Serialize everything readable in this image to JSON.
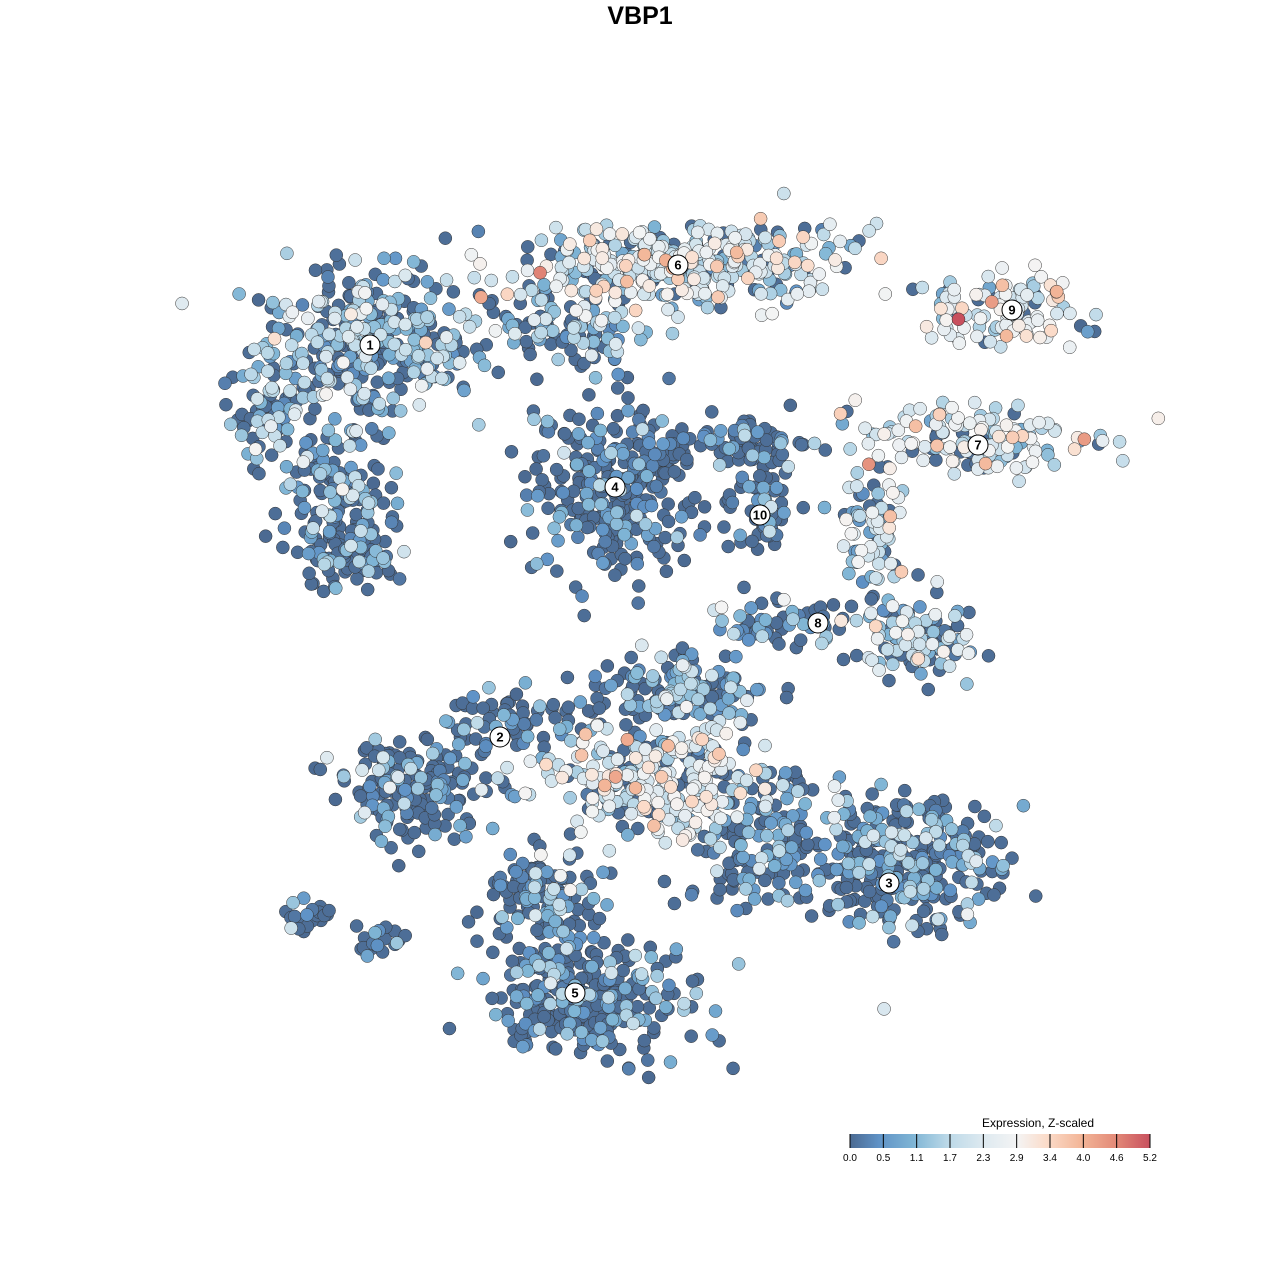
{
  "chart_data": {
    "type": "scatter",
    "title": "VBP1",
    "xlabel": "",
    "ylabel": "",
    "xlim": [
      -9,
      10
    ],
    "ylim": [
      -9.5,
      9.5
    ],
    "grid": false,
    "axes_visible": false,
    "legend": {
      "title": "Expression, Z-scaled",
      "placement": "bottom-right",
      "ticks": [
        "0.0",
        "0.5",
        "1.1",
        "1.7",
        "2.3",
        "2.9",
        "3.4",
        "4.0",
        "4.6",
        "5.2"
      ],
      "range": [
        0,
        5.2
      ],
      "colors": [
        "#4b6a92",
        "#5f92c6",
        "#7fb5d5",
        "#bcd9e8",
        "#dde9f0",
        "#f4f4f4",
        "#fbdcca",
        "#f3b698",
        "#e38a78",
        "#c8505e"
      ]
    },
    "point_stroke": "#333333",
    "clusters": [
      {
        "label": "1",
        "center": [
          -5.4,
          5.9
        ],
        "blobs": [
          {
            "c": [
              -5.4,
              5.9
            ],
            "s": [
              1.8,
              1.2
            ],
            "n": 350,
            "expr": 1.3
          },
          {
            "c": [
              -6.0,
              3.0
            ],
            "s": [
              1.0,
              1.3
            ],
            "n": 150,
            "expr": 0.9
          },
          {
            "c": [
              -7.5,
              4.5
            ],
            "s": [
              0.6,
              0.8
            ],
            "n": 60,
            "expr": 1.0
          },
          {
            "c": [
              -5.8,
              1.7
            ],
            "s": [
              0.8,
              0.5
            ],
            "n": 80,
            "expr": 0.6
          }
        ]
      },
      {
        "label": "6",
        "center": [
          0.76,
          7.5
        ],
        "blobs": [
          {
            "c": [
              0.8,
              7.5
            ],
            "s": [
              2.6,
              0.7
            ],
            "n": 400,
            "expr": 2.0
          },
          {
            "c": [
              -1.5,
              6.2
            ],
            "s": [
              1.5,
              0.6
            ],
            "n": 100,
            "expr": 1.4
          }
        ]
      },
      {
        "label": "4",
        "center": [
          -0.5,
          3.06
        ],
        "blobs": [
          {
            "c": [
              -0.5,
              3.0
            ],
            "s": [
              1.3,
              1.5
            ],
            "n": 300,
            "expr": 0.4
          }
        ]
      },
      {
        "label": "10",
        "center": [
          2.4,
          2.5
        ],
        "blobs": [
          {
            "c": [
              2.4,
              2.6
            ],
            "s": [
              0.6,
              1.0
            ],
            "n": 60,
            "expr": 0.5
          },
          {
            "c": [
              2.0,
              3.9
            ],
            "s": [
              1.2,
              0.4
            ],
            "n": 70,
            "expr": 0.4
          }
        ]
      },
      {
        "label": "9",
        "center": [
          7.44,
          6.6
        ],
        "blobs": [
          {
            "c": [
              7.2,
              6.6
            ],
            "s": [
              1.3,
              0.6
            ],
            "n": 120,
            "expr": 2.3
          }
        ]
      },
      {
        "label": "7",
        "center": [
          6.76,
          3.9
        ],
        "blobs": [
          {
            "c": [
              6.6,
              4.0
            ],
            "s": [
              1.9,
              0.6
            ],
            "n": 150,
            "expr": 2.3
          },
          {
            "c": [
              4.7,
              2.2
            ],
            "s": [
              0.5,
              1.1
            ],
            "n": 70,
            "expr": 1.8
          }
        ]
      },
      {
        "label": "8",
        "center": [
          3.56,
          0.34
        ],
        "blobs": [
          {
            "c": [
              5.5,
              0.0
            ],
            "s": [
              0.9,
              0.7
            ],
            "n": 110,
            "expr": 1.6
          },
          {
            "c": [
              2.8,
              0.3
            ],
            "s": [
              1.2,
              0.4
            ],
            "n": 60,
            "expr": 0.9
          }
        ]
      },
      {
        "label": "2",
        "center": [
          -2.8,
          -1.94
        ],
        "blobs": [
          {
            "c": [
              -4.5,
              -3.0
            ],
            "s": [
              1.3,
              0.9
            ],
            "n": 180,
            "expr": 0.4
          },
          {
            "c": [
              -2.5,
              -1.6
            ],
            "s": [
              1.0,
              0.5
            ],
            "n": 60,
            "expr": 0.6
          },
          {
            "c": [
              -6.6,
              -5.5
            ],
            "s": [
              0.4,
              0.3
            ],
            "n": 20,
            "expr": 0.2
          },
          {
            "c": [
              -5.2,
              -6.0
            ],
            "s": [
              0.5,
              0.3
            ],
            "n": 20,
            "expr": 0.5
          }
        ]
      },
      {
        "label": "3",
        "center": [
          4.98,
          -4.86
        ],
        "blobs": [
          {
            "c": [
              5.4,
              -4.5
            ],
            "s": [
              1.5,
              1.0
            ],
            "n": 300,
            "expr": 0.9
          },
          {
            "c": [
              2.4,
              -4.0
            ],
            "s": [
              1.2,
              1.2
            ],
            "n": 150,
            "expr": 0.8
          },
          {
            "c": [
              0.4,
              -2.8
            ],
            "s": [
              2.0,
              1.0
            ],
            "n": 300,
            "expr": 2.1
          },
          {
            "c": [
              0.8,
              -1.0
            ],
            "s": [
              1.5,
              0.6
            ],
            "n": 150,
            "expr": 1.0
          }
        ]
      },
      {
        "label": "5",
        "center": [
          -1.3,
          -7.06
        ],
        "blobs": [
          {
            "c": [
              -1.0,
              -7.2
            ],
            "s": [
              1.5,
              1.0
            ],
            "n": 300,
            "expr": 0.6
          },
          {
            "c": [
              -2.0,
              -5.2
            ],
            "s": [
              1.0,
              0.8
            ],
            "n": 120,
            "expr": 0.9
          }
        ]
      }
    ]
  }
}
